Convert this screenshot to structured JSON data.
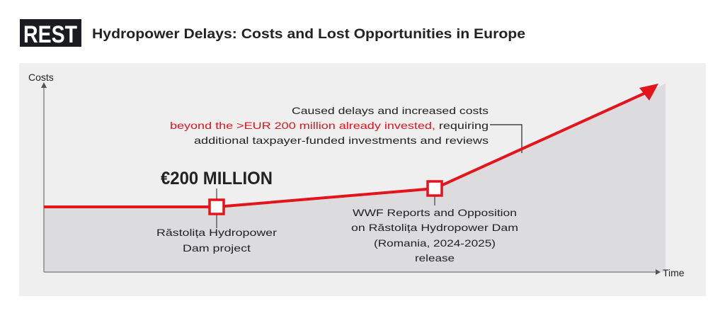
{
  "logo": {
    "text": "REST"
  },
  "title": "Hydropower Delays: Costs and Lost Opportunities in Europe",
  "colors": {
    "accent": "#e3141c",
    "panel": "#efefef",
    "area": "#dcdcde",
    "logo_bg": "#1b1b22"
  },
  "axes": {
    "y_label": "Costs",
    "x_label": "Time"
  },
  "milestones": [
    {
      "value_label": "€200 MILLION",
      "lines": [
        "Răstolița Hydropower",
        "Dam project"
      ]
    },
    {
      "lines": [
        "WWF Reports and Opposition",
        "on Răstolița Hydropower Dam",
        "(Romania, 2024-2025)",
        "release"
      ]
    }
  ],
  "annotation": {
    "line1": "Caused delays and increased costs",
    "line2_highlight": "beyond the >EUR 200 million already invested,",
    "line2_rest": " requiring",
    "line3": "additional taxpayer-funded investments and reviews"
  }
}
